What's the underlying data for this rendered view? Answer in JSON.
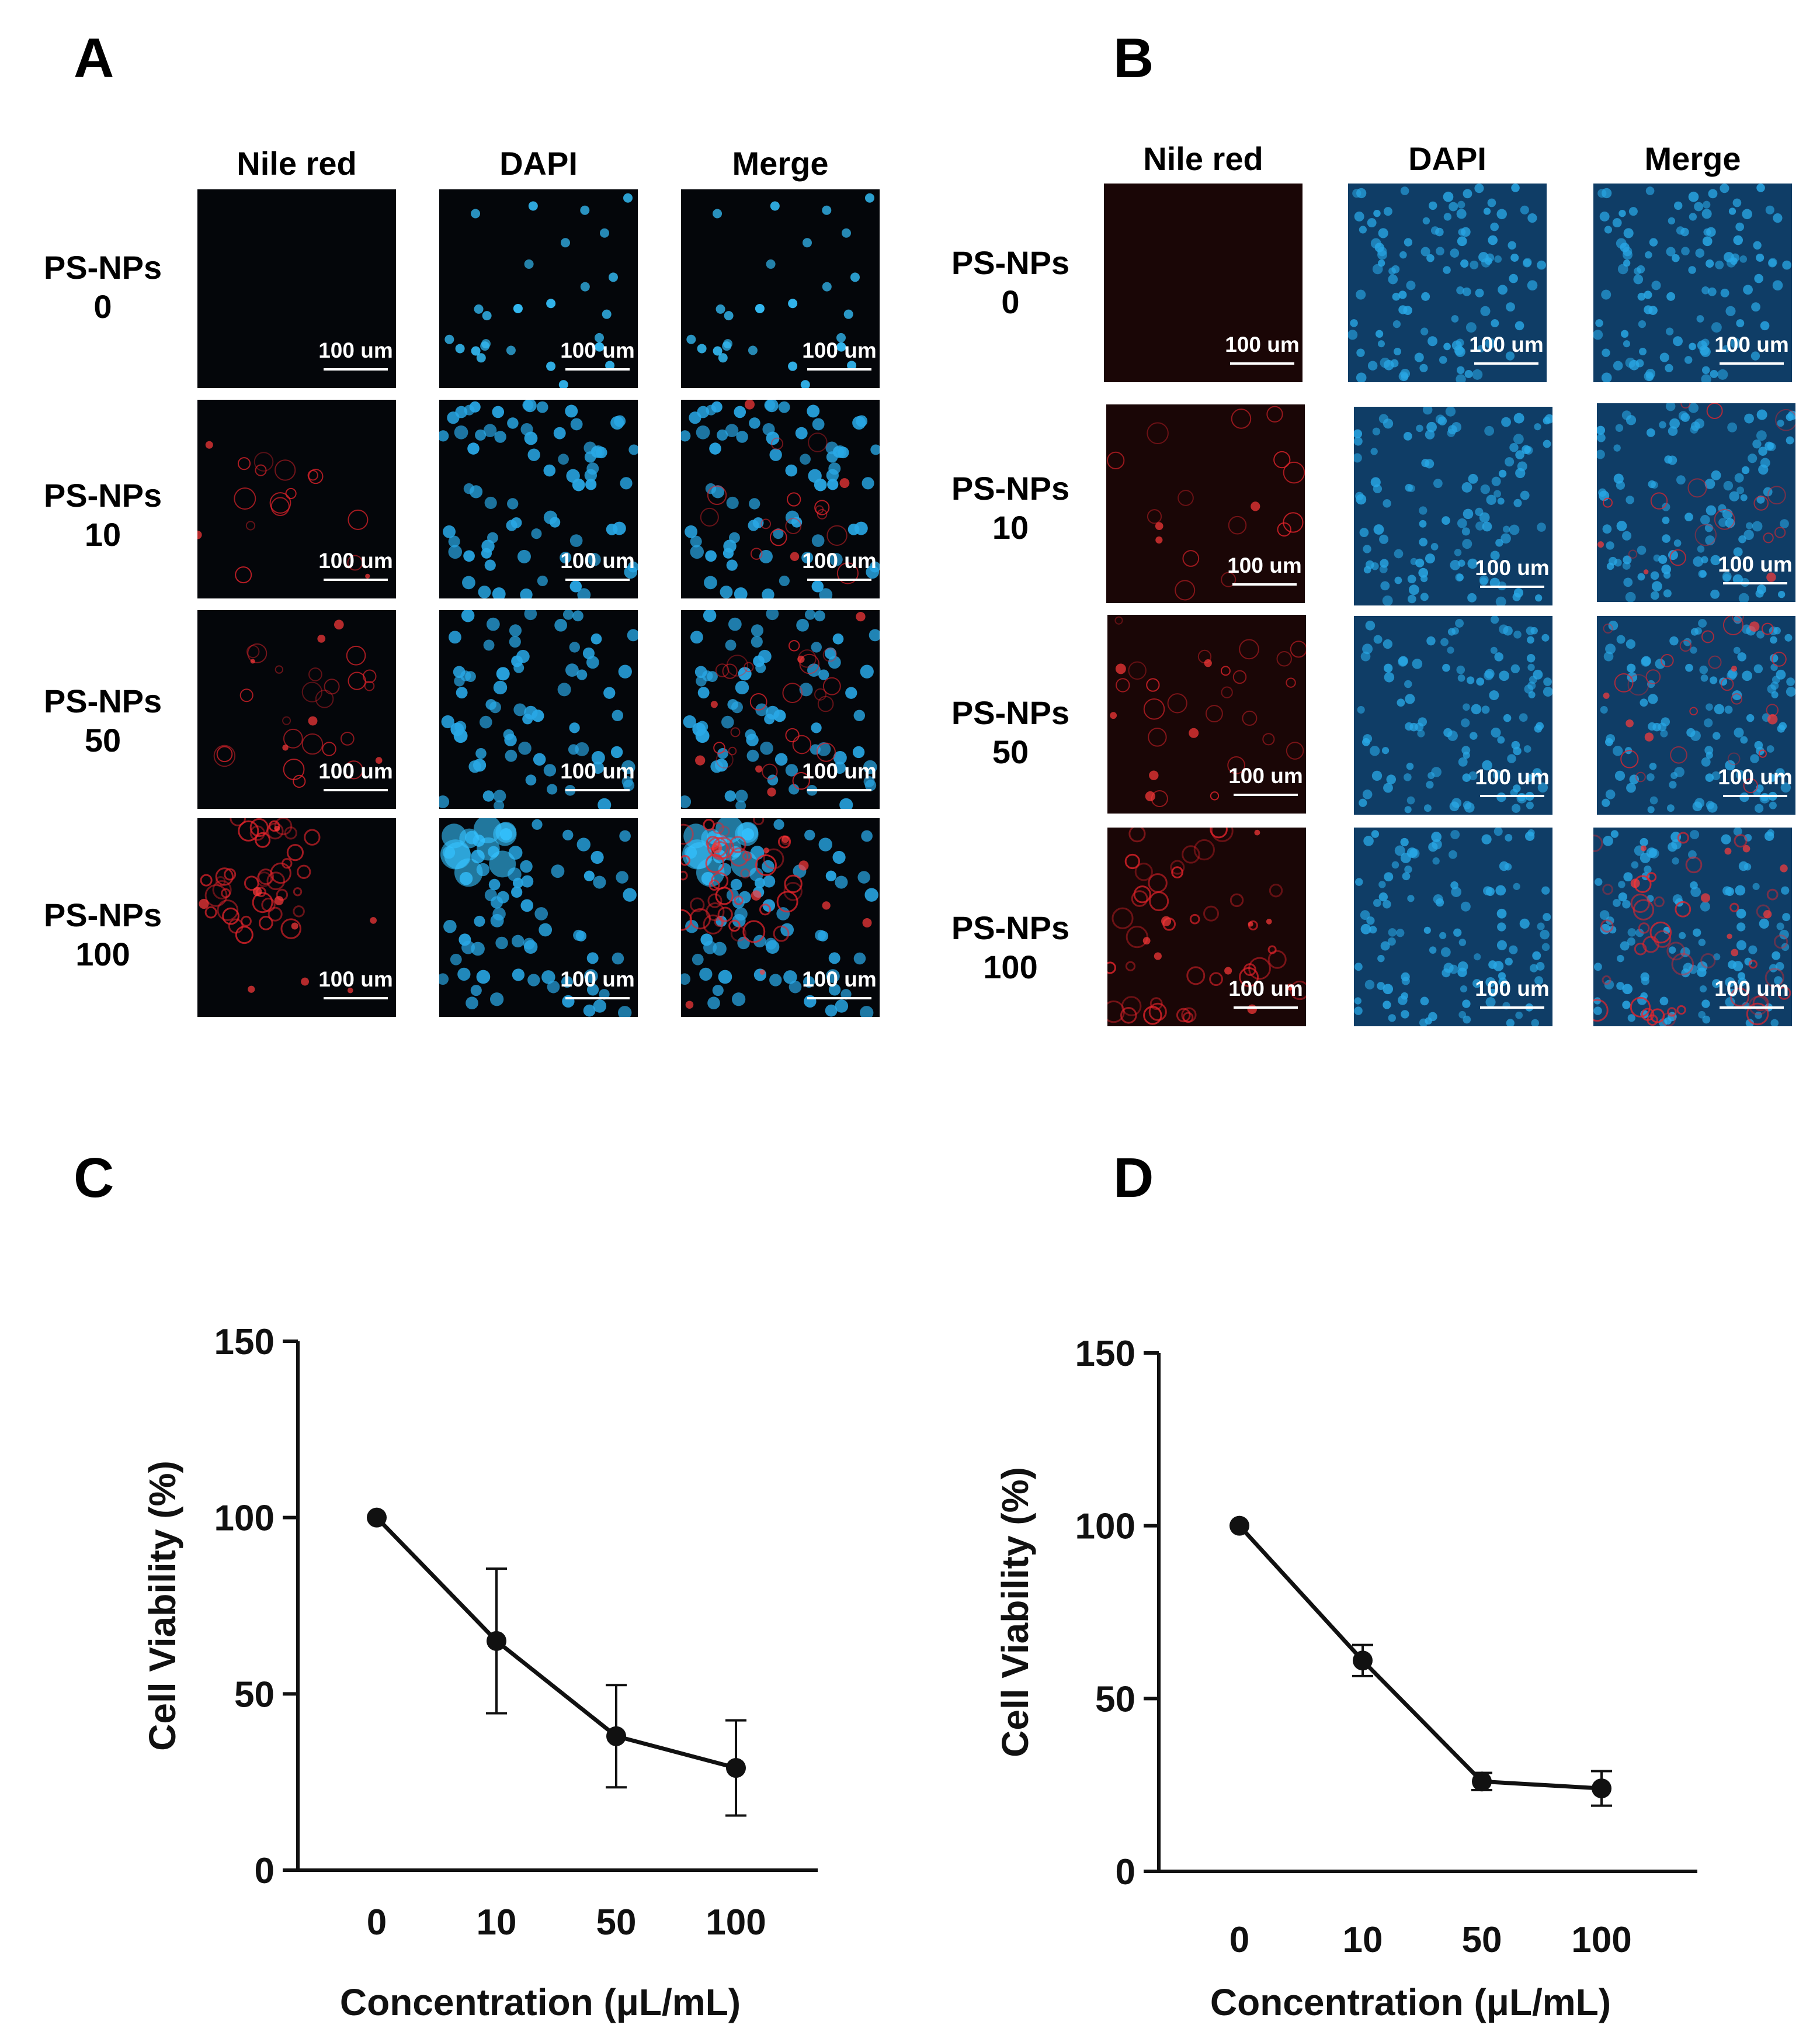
{
  "panels": {
    "A": {
      "letter": "A",
      "columns": [
        "Nile red",
        "DAPI",
        "Merge"
      ],
      "rows": [
        {
          "line1": "PS-NPs",
          "line2": "0"
        },
        {
          "line1": "PS-NPs",
          "line2": "10"
        },
        {
          "line1": "PS-NPs",
          "line2": "50"
        },
        {
          "line1": "PS-NPs",
          "line2": "100"
        }
      ],
      "scale_label": "100 um"
    },
    "B": {
      "letter": "B",
      "columns": [
        "Nile red",
        "DAPI",
        "Merge"
      ],
      "rows": [
        {
          "line1": "PS-NPs",
          "line2": "0"
        },
        {
          "line1": "PS-NPs",
          "line2": "10"
        },
        {
          "line1": "PS-NPs",
          "line2": "50"
        },
        {
          "line1": "PS-NPs",
          "line2": "100"
        }
      ],
      "scale_label": "100 um"
    },
    "C": {
      "letter": "C"
    },
    "D": {
      "letter": "D"
    }
  },
  "colors": {
    "nile_red": "#e8242c",
    "dapi": "#29a8e6",
    "dapi_bright": "#36c3ff",
    "line": "#111111"
  },
  "chart_data": [
    {
      "panel": "C",
      "type": "line",
      "categories": [
        "0",
        "10",
        "50",
        "100"
      ],
      "values": [
        100,
        65,
        38,
        29
      ],
      "error": [
        0,
        20.5,
        14.5,
        13.5
      ],
      "xlabel": "Concentration (μL/mL)",
      "ylabel": "Cell Viability (%)",
      "ylim": [
        0,
        150
      ],
      "yticks": [
        0,
        50,
        100,
        150
      ],
      "grid": false
    },
    {
      "panel": "D",
      "type": "line",
      "categories": [
        "0",
        "10",
        "50",
        "100"
      ],
      "values": [
        100,
        61,
        26,
        24
      ],
      "error": [
        0,
        4.5,
        2.5,
        5
      ],
      "xlabel": "Concentration (μL/mL)",
      "ylabel": "Cell Viability (%)",
      "ylim": [
        0,
        150
      ],
      "yticks": [
        0,
        50,
        100,
        150
      ],
      "grid": false
    }
  ]
}
